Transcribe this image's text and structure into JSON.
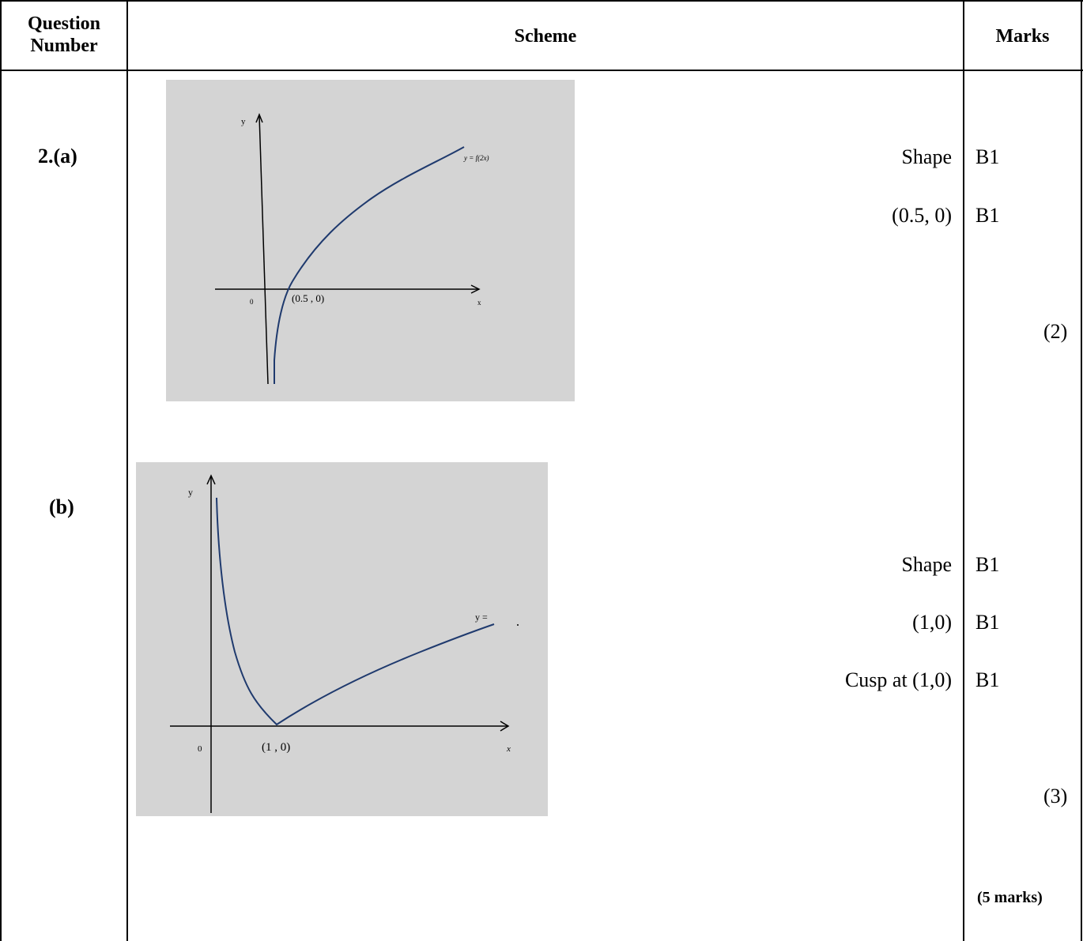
{
  "header": {
    "question_number": "Question Number",
    "scheme": "Scheme",
    "marks": "Marks"
  },
  "part_a": {
    "label": "2.(a)",
    "graph": {
      "axis_y": "y",
      "axis_x": "x",
      "origin": "0",
      "point_label": "(0.5 , 0)",
      "curve_label": "y = f(2x)"
    },
    "criteria": [
      {
        "text": "Shape",
        "mark": "B1"
      },
      {
        "text": "(0.5, 0)",
        "mark": "B1"
      }
    ],
    "subtotal": "(2)"
  },
  "part_b": {
    "label": "(b)",
    "graph": {
      "axis_y": "y",
      "axis_x": "x",
      "origin": "0",
      "point_label": "(1 , 0)",
      "curve_label": "y ="
    },
    "criteria": [
      {
        "text": "Shape",
        "mark": "B1"
      },
      {
        "text": "(1,0)",
        "mark": "B1"
      },
      {
        "text": "Cusp at (1,0)",
        "mark": "B1"
      }
    ],
    "subtotal": "(3)"
  },
  "total": "(5 marks)",
  "colors": {
    "graph_bg": "#d4d4d4",
    "curve": "#1f3a6e"
  }
}
